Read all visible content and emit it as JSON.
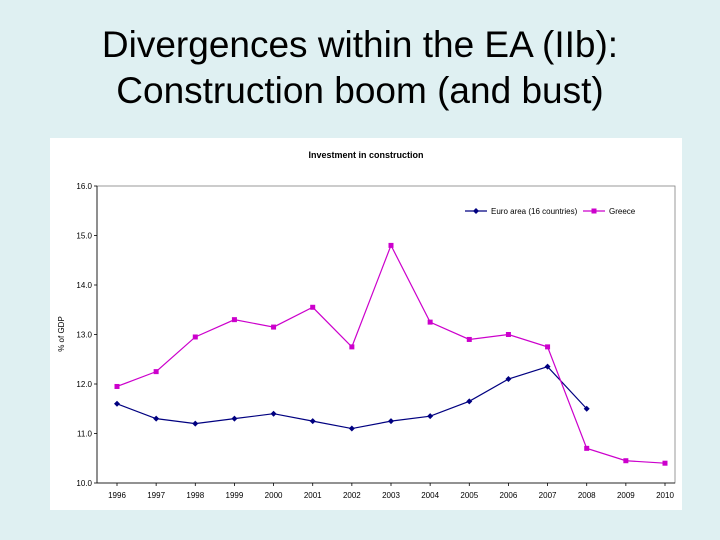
{
  "slide": {
    "title_line1": "Divergences within the EA (IIb):",
    "title_line2": "Construction boom (and bust)"
  },
  "chart_data": {
    "type": "line",
    "title": "Investment in construction",
    "xlabel": "",
    "ylabel": "% of GDP",
    "categories": [
      "1996",
      "1997",
      "1998",
      "1999",
      "2000",
      "2001",
      "2002",
      "2003",
      "2004",
      "2005",
      "2006",
      "2007",
      "2008",
      "2009",
      "2010"
    ],
    "ylim": [
      10.0,
      16.0
    ],
    "yticks": [
      "10.0",
      "11.0",
      "12.0",
      "13.0",
      "14.0",
      "15.0",
      "16.0"
    ],
    "grid": false,
    "legend_position": "top-right",
    "series": [
      {
        "name": "Euro area (16 countries)",
        "color": "#000080",
        "marker": "diamond",
        "values": [
          11.6,
          11.3,
          11.2,
          11.3,
          11.4,
          11.25,
          11.1,
          11.25,
          11.35,
          11.65,
          12.1,
          12.35,
          11.5,
          null,
          null
        ]
      },
      {
        "name": "Greece",
        "color": "#cc00cc",
        "marker": "square",
        "values": [
          11.95,
          12.25,
          12.95,
          13.3,
          13.15,
          13.55,
          12.75,
          14.8,
          13.25,
          12.9,
          13.0,
          12.75,
          10.7,
          10.45,
          10.4
        ]
      }
    ]
  }
}
